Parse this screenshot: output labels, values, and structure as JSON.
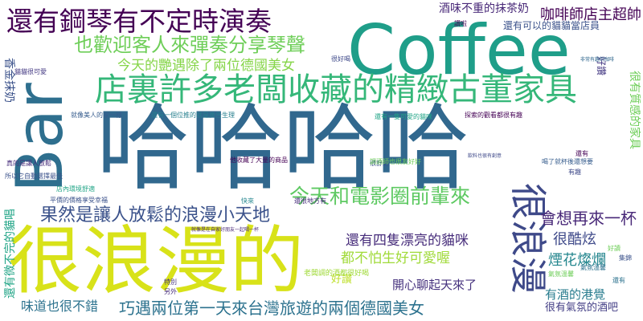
{
  "words": [
    {
      "text": "哈哈哈哈",
      "color": "#31688e"
    },
    {
      "text": "Coffee",
      "color": "#1f9e89"
    },
    {
      "text": "很浪漫的",
      "color": "#d8e219"
    },
    {
      "text": "Bar",
      "color": "#2e6f8e"
    },
    {
      "text": "店裏許多老闆收藏的精緻古董家具",
      "color": "#35b779"
    },
    {
      "text": "還有鋼琴有不定時演奏",
      "color": "#440154"
    },
    {
      "text": "很浪漫",
      "color": "#3e4989"
    },
    {
      "text": "也歡迎客人來彈奏分享琴聲",
      "color": "#6ece58"
    },
    {
      "text": "今天和電影圈前輩來",
      "color": "#5ec962"
    },
    {
      "text": "果然是讓人放鬆的浪漫小天地",
      "color": "#3b528b"
    },
    {
      "text": "巧遇兩位第一天來台灣旅遊的兩個德國美女",
      "color": "#2c728e"
    },
    {
      "text": "會想再來一杯",
      "color": "#482878"
    },
    {
      "text": "今天的艷遇除了兩位德國美女",
      "color": "#86d549"
    },
    {
      "text": "咖啡師店主超帥",
      "color": "#440154"
    },
    {
      "text": "還有四隻漂亮的貓咪",
      "color": "#472d7b"
    },
    {
      "text": "都不怕生好可愛喔",
      "color": "#a0da39"
    },
    {
      "text": "很酷炫",
      "color": "#3e4989"
    },
    {
      "text": "煙花燦爛",
      "color": "#24868e"
    },
    {
      "text": "有酒的港覺",
      "color": "#287c8e"
    },
    {
      "text": "開心聊起天來了",
      "color": "#46327e"
    },
    {
      "text": "味道也很不錯",
      "color": "#2c728e"
    },
    {
      "text": "很有氣氛的酒吧",
      "color": "#433e85"
    },
    {
      "text": "好讚",
      "color": "#bddf26"
    },
    {
      "text": "酒味不重的抹茶奶",
      "color": "#482878"
    },
    {
      "text": "還有可以的貓貓當店員",
      "color": "#3b528b"
    },
    {
      "text": "香金抹奶",
      "color": "#3b528b"
    },
    {
      "text": "很有質感的家具",
      "color": "#6ece58"
    },
    {
      "text": "還有微不完的貓唱",
      "color": "#20a486"
    },
    {
      "text": "好讚",
      "color": "#443983"
    },
    {
      "text": "就像美人的家一樣",
      "color": "#365c8d"
    },
    {
      "text": "還有一個位推的就是廣告生理",
      "color": "#277f8e"
    },
    {
      "text": "很好喝",
      "color": "#3e4989"
    },
    {
      "text": "氣氛溫馨",
      "color": "#6ece58"
    },
    {
      "text": "探索的觀看都很有趣",
      "color": "#440154"
    },
    {
      "text": "他收藏了大量的商品",
      "color": "#440154"
    },
    {
      "text": "還有一隻可愛的貓咪",
      "color": "#20a486"
    },
    {
      "text": "非常有趣的咖啡",
      "color": "#31688e"
    },
    {
      "text": "老闆調的酒都很好喝",
      "color": "#a0da39"
    },
    {
      "text": "店內環境舒適",
      "color": "#20a486"
    },
    {
      "text": "平價的價格享受幸福",
      "color": "#3b528b"
    },
    {
      "text": "真的是讓人放鬆",
      "color": "#472d7b"
    },
    {
      "text": "讚啦",
      "color": "#440154"
    },
    {
      "text": "特別",
      "color": "#46327e"
    },
    {
      "text": "另外",
      "color": "#472d7b"
    },
    {
      "text": "還有",
      "color": "#440154"
    },
    {
      "text": "喝了就杯後還想要",
      "color": "#365c8d"
    },
    {
      "text": "有趣",
      "color": "#3e4989"
    },
    {
      "text": "很舒適",
      "color": "#3b528b"
    },
    {
      "text": "快來",
      "color": "#24868e"
    },
    {
      "text": "還很地方有",
      "color": "#472d7b"
    },
    {
      "text": "就像是在自家好朋友一起喝一杯",
      "color": "#482878"
    },
    {
      "text": "調酒師也很友好好",
      "color": "#6ece58"
    },
    {
      "text": "所以它自動選擇最佳",
      "color": "#3b528b"
    },
    {
      "text": "貓貓很可愛",
      "color": "#443983"
    },
    {
      "text": "飲料也很有創意",
      "color": "#3e4989"
    },
    {
      "text": "氣氛溫馨",
      "color": "#2c728e"
    },
    {
      "text": "好讀",
      "color": "#6ece58"
    },
    {
      "text": "集錦",
      "color": "#3b528b"
    },
    {
      "text": "還有",
      "color": "#2c728e"
    }
  ]
}
